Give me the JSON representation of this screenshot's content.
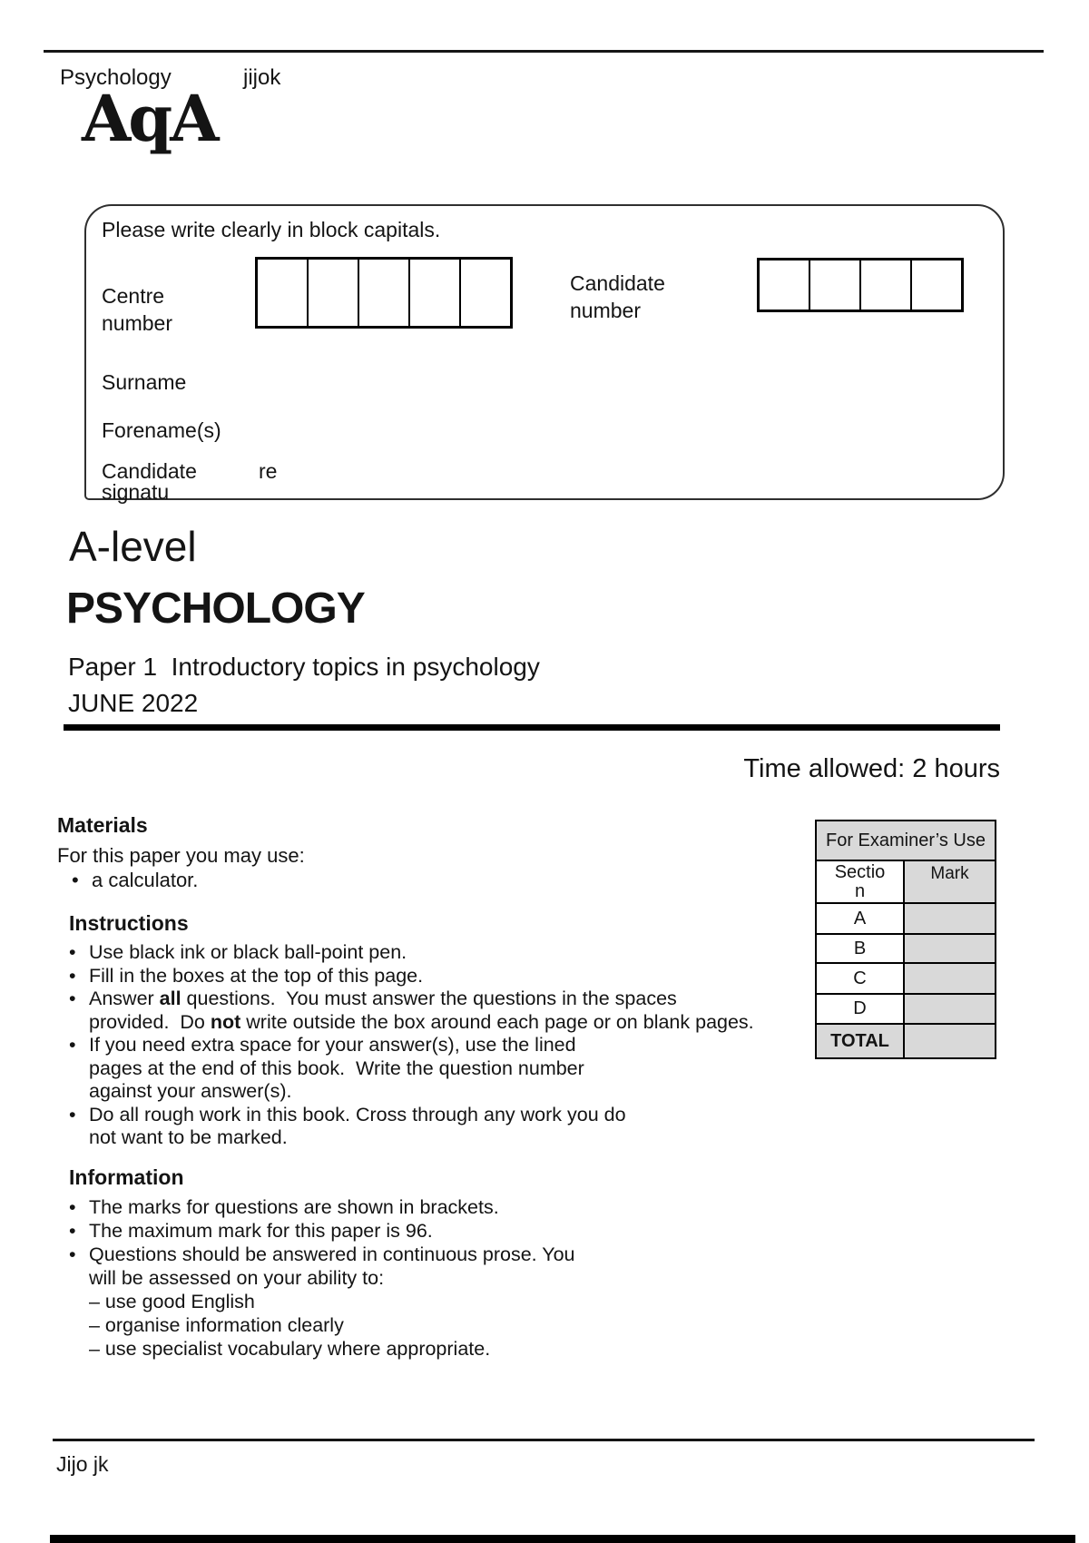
{
  "header": {
    "subject": "Psychology",
    "note": "jijok",
    "logo": "AqA"
  },
  "candidate_box": {
    "title": "Please write clearly in block capitals.",
    "centre_number": {
      "label": "Centre\nnumber",
      "cells": 5
    },
    "candidate_number": {
      "label": "Candidate\nnumber",
      "cells": 4
    },
    "surname_label": "Surname",
    "forenames_label": "Forename(s)",
    "signature": {
      "line1": "Candidate",
      "line1_suffix": "re",
      "line2": "signatu"
    }
  },
  "title": {
    "level": "A-level",
    "subject": "PSYCHOLOGY",
    "paper": "Paper 1  Introductory topics in psychology",
    "session": "JUNE 2022",
    "time_allowed": "Time allowed: 2 hours"
  },
  "materials": {
    "heading": "Materials",
    "intro": "For this paper you may use:",
    "lines": [
      {
        "bullet": "•",
        "segs": [
          {
            "t": "a calculator."
          }
        ]
      }
    ]
  },
  "instructions": {
    "heading": "Instructions",
    "lines": [
      {
        "bullet": "•",
        "segs": [
          {
            "t": "Use black ink or black ball-point pen."
          }
        ]
      },
      {
        "bullet": "•",
        "segs": [
          {
            "t": "Fill in the boxes at the top of this page."
          }
        ]
      },
      {
        "bullet": "•",
        "segs": [
          {
            "t": "Answer "
          },
          {
            "t": "all",
            "b": true
          },
          {
            "t": " questions.  You must answer the questions in the spaces"
          }
        ]
      },
      {
        "segs": [
          {
            "t": "provided.  Do "
          },
          {
            "t": "not",
            "b": true
          },
          {
            "t": " write outside the box around each page or on blank pages."
          }
        ]
      },
      {
        "bullet": "•",
        "segs": [
          {
            "t": "If you need extra space for your answer(s), use the lined"
          }
        ]
      },
      {
        "segs": [
          {
            "t": "pages at the end of this book.  Write the question number"
          }
        ]
      },
      {
        "segs": [
          {
            "t": "against your answer(s)."
          }
        ]
      },
      {
        "bullet": "•",
        "segs": [
          {
            "t": "Do all rough work in this book. Cross through any work you do"
          }
        ]
      },
      {
        "segs": [
          {
            "t": "not want to be marked."
          }
        ]
      }
    ]
  },
  "information": {
    "heading": "Information",
    "lines": [
      {
        "bullet": "•",
        "segs": [
          {
            "t": "The marks for questions are shown in brackets."
          }
        ]
      },
      {
        "bullet": "•",
        "segs": [
          {
            "t": "The maximum mark for this paper is 96."
          }
        ]
      },
      {
        "bullet": "•",
        "segs": [
          {
            "t": "Questions should be answered in continuous prose. You"
          }
        ]
      },
      {
        "segs": [
          {
            "t": "will be assessed on your ability to:"
          }
        ]
      },
      {
        "segs": [
          {
            "t": "– use good English"
          }
        ]
      },
      {
        "segs": [
          {
            "t": "– organise information clearly"
          }
        ]
      },
      {
        "segs": [
          {
            "t": "– use specialist vocabulary where appropriate."
          }
        ]
      }
    ]
  },
  "examiner_table": {
    "title": "For Examiner’s Use",
    "col_section": "Sectio\nn",
    "col_mark": "Mark",
    "rows": [
      "A",
      "B",
      "C",
      "D"
    ],
    "total_label": "TOTAL",
    "gray_color": "#d9d9d9"
  },
  "footer": {
    "name": "Jijo jk"
  }
}
